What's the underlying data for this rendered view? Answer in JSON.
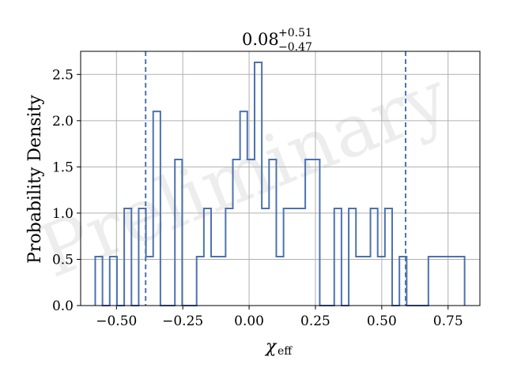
{
  "chart_data": {
    "type": "histogram",
    "title": {
      "value": "0.08",
      "upper": "+0.51",
      "lower": "−0.47"
    },
    "xlabel": {
      "symbol": "χ",
      "subscript": "eff"
    },
    "ylabel": "Probability Density",
    "xlim": [
      -0.635,
      0.87
    ],
    "ylim": [
      0,
      2.75
    ],
    "x_ticks": [
      -0.5,
      -0.25,
      0.0,
      0.25,
      0.5,
      0.75
    ],
    "x_tick_labels": [
      "−0.50",
      "−0.25",
      "0.00",
      "0.25",
      "0.50",
      "0.75"
    ],
    "y_ticks": [
      0.0,
      0.5,
      1.0,
      1.5,
      2.0,
      2.5
    ],
    "y_tick_labels": [
      "0.0",
      "0.5",
      "1.0",
      "1.5",
      "2.0",
      "2.5"
    ],
    "grid": true,
    "bin_edges": [
      -0.58,
      -0.5527,
      -0.5254,
      -0.4981,
      -0.4708,
      -0.4435,
      -0.4162,
      -0.3889,
      -0.3616,
      -0.3343,
      -0.307,
      -0.2797,
      -0.2524,
      -0.2251,
      -0.1978,
      -0.1705,
      -0.1432,
      -0.1159,
      -0.0886,
      -0.0613,
      -0.034,
      -0.0067,
      0.0206,
      0.0479,
      0.0752,
      0.1025,
      0.1298,
      0.1571,
      0.1844,
      0.2117,
      0.239,
      0.2663,
      0.2936,
      0.3209,
      0.3482,
      0.3755,
      0.4028,
      0.4301,
      0.4574,
      0.4847,
      0.512,
      0.5393,
      0.5666,
      0.5939,
      0.6212,
      0.6485,
      0.6758,
      0.7031,
      0.7304,
      0.7577,
      0.785,
      0.8123
    ],
    "density": [
      0.53,
      0.0,
      0.53,
      0.0,
      1.05,
      0.0,
      1.05,
      0.53,
      2.1,
      0.0,
      0.0,
      1.58,
      0.0,
      0.0,
      0.53,
      1.05,
      0.53,
      0.53,
      1.05,
      1.58,
      2.1,
      1.58,
      2.63,
      1.05,
      1.58,
      0.53,
      1.05,
      1.05,
      1.05,
      1.58,
      1.58,
      0.0,
      0.0,
      1.05,
      0.0,
      1.05,
      0.53,
      0.53,
      1.05,
      0.53,
      1.05,
      0.0,
      0.53,
      0.0,
      0.0,
      0.0,
      0.53,
      0.53,
      0.53,
      0.53,
      0.53
    ],
    "credible_interval": [
      -0.39,
      0.59
    ],
    "annotations": [
      "Preliminary"
    ],
    "colors": {
      "histogram": "#4c72b0",
      "interval_lines": "#4c72b0",
      "grid": "#b0b0b0",
      "axes": "#000000"
    }
  }
}
